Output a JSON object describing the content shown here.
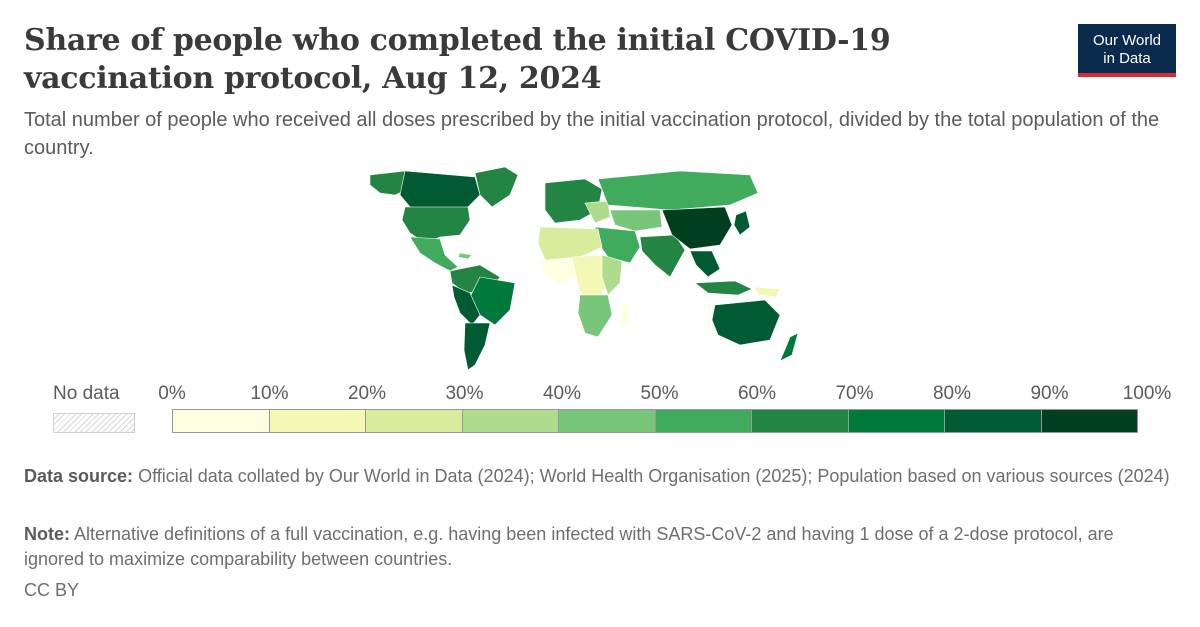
{
  "header": {
    "title": "Share of people who completed the initial COVID-19 vaccination protocol, Aug 12, 2024",
    "subtitle": "Total number of people who received all doses prescribed by the initial vaccination protocol, divided by the total population of the country."
  },
  "logo": {
    "line1": "Our World",
    "line2": "in Data",
    "bg_color": "#0b2b4e",
    "accent_color": "#d42b37"
  },
  "legend": {
    "no_data_label": "No data",
    "ticks": [
      "0%",
      "10%",
      "20%",
      "30%",
      "40%",
      "50%",
      "60%",
      "70%",
      "80%",
      "90%",
      "100%"
    ],
    "bin_colors": [
      "#fefee0",
      "#f3f8b4",
      "#d7ec9d",
      "#aedc8c",
      "#78c679",
      "#41ab5d",
      "#238443",
      "#007a3b",
      "#005a32",
      "#00401f"
    ]
  },
  "footer": {
    "source_label": "Data source:",
    "source_text": "Official data collated by Our World in Data (2024); World Health Organisation (2025); Population based on various sources (2024)",
    "note_label": "Note:",
    "note_text": "Alternative definitions of a full vaccination, e.g. having been infected with SARS-CoV-2 and having 1 dose of a 2-dose protocol, are ignored to maximize comparability between countries.",
    "license": "CC BY"
  }
}
